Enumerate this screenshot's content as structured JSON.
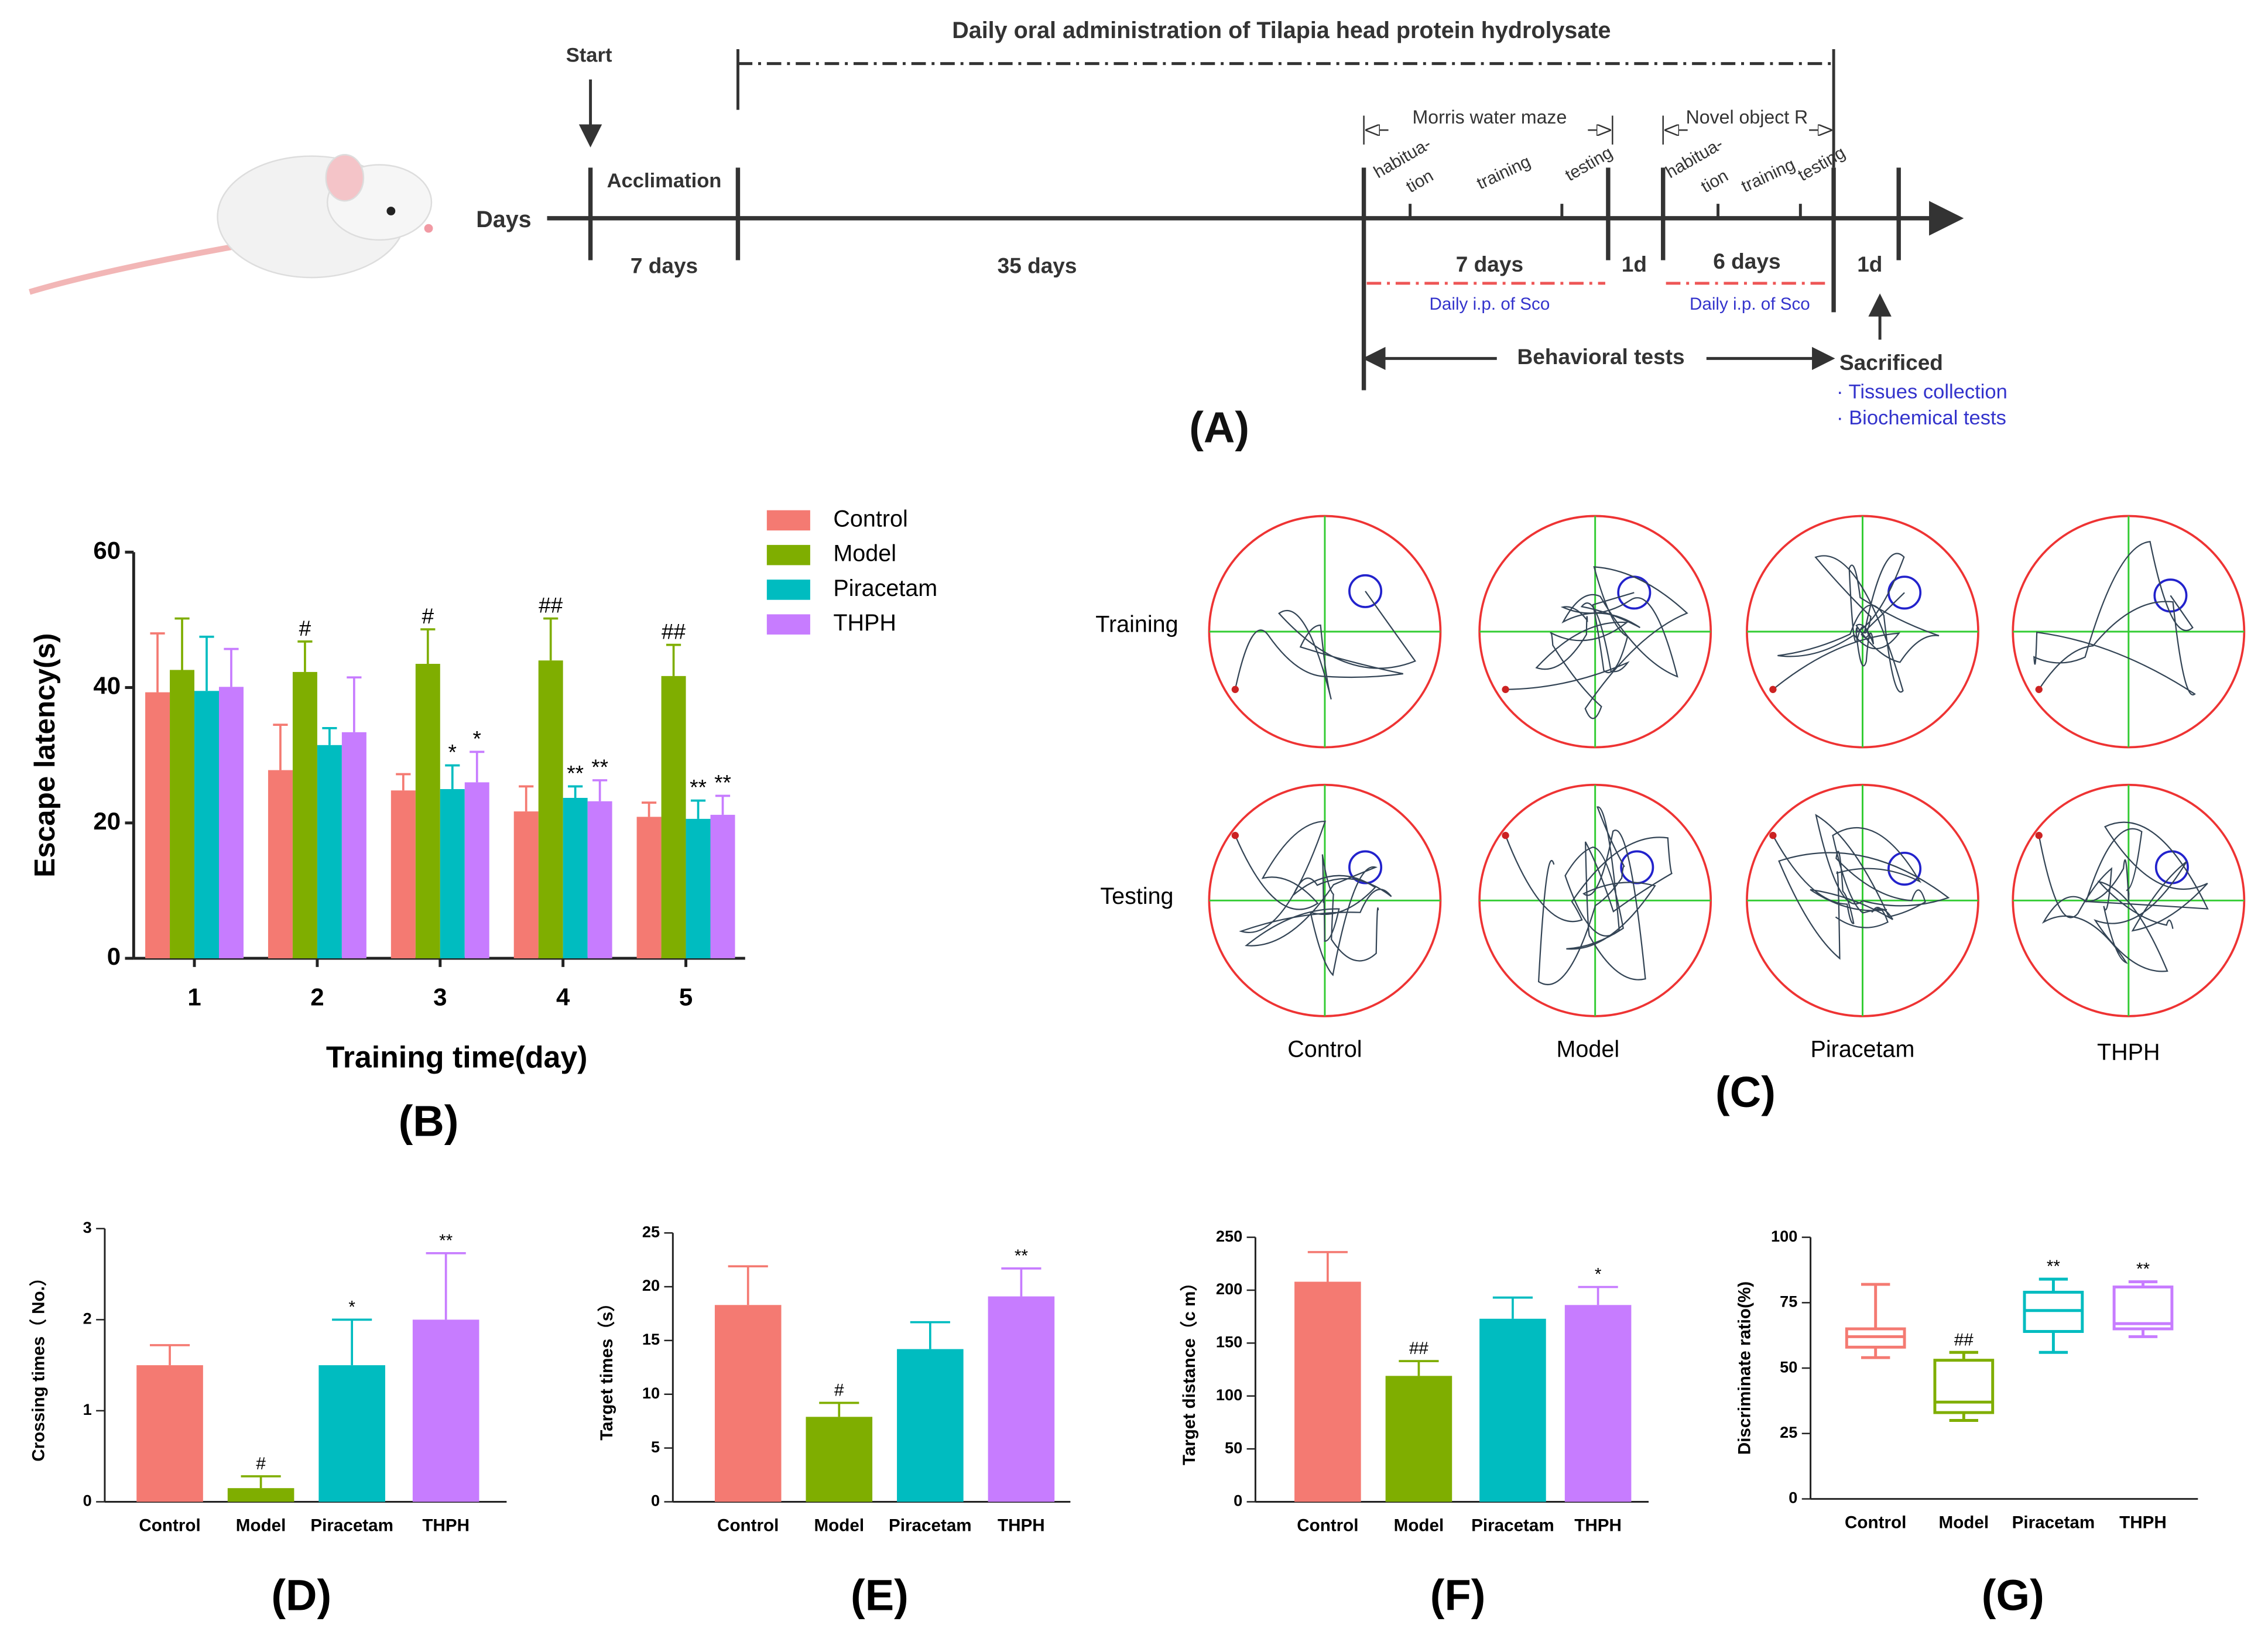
{
  "timeline": {
    "panel": "(A)",
    "labels": [
      "Start",
      "Daily oral administration of Tilapia head protein hydrolysate",
      "Acclimation",
      "Days",
      "7 days",
      "35 days",
      "Morris water maze",
      "habitua-",
      "tion",
      "training",
      "testing",
      "Novel object R",
      "habitua-",
      "tion",
      "training",
      "testing",
      "7 days",
      "1d",
      "6 days",
      "1d",
      "Daily i.p. of Sco",
      "Daily i.p. of Sco",
      "Behavioral tests",
      "Sacrificed",
      "· Tissues collection",
      "· Biochemical tests"
    ]
  },
  "maze": {
    "panel": "(C)",
    "rows": [
      "Training",
      "Testing"
    ],
    "columns": [
      "Control",
      "Model",
      "Piracetam",
      "THPH"
    ]
  },
  "chart_data": [
    {
      "type": "bar",
      "panel": "(B)",
      "ylabel": "Escape latency(s)",
      "xlabel": "Training time(day)",
      "categories": [
        "1",
        "2",
        "3",
        "4",
        "5"
      ],
      "ylim": [
        0,
        60
      ],
      "yticks": [
        0,
        20,
        40,
        60
      ],
      "series": [
        {
          "name": "Control",
          "color": "#f47a72",
          "values": [
            39.3,
            27.8,
            24.8,
            21.7,
            20.9
          ],
          "errors": [
            8.7,
            6.7,
            2.4,
            3.7,
            2.1
          ],
          "marks": [
            null,
            null,
            null,
            null,
            null
          ]
        },
        {
          "name": "Model",
          "color": "#7fae00",
          "values": [
            42.6,
            42.3,
            43.5,
            44.0,
            41.7
          ],
          "errors": [
            7.6,
            4.5,
            5.1,
            6.2,
            4.6
          ],
          "marks": [
            null,
            "#",
            "#",
            "##",
            "##"
          ]
        },
        {
          "name": "Piracetam",
          "color": "#00bcc0",
          "values": [
            39.5,
            31.5,
            25.0,
            23.7,
            20.6
          ],
          "errors": [
            8.0,
            2.5,
            3.5,
            1.7,
            2.7
          ],
          "marks": [
            null,
            null,
            "*",
            "**",
            "**"
          ]
        },
        {
          "name": "THPH",
          "color": "#c77cff",
          "values": [
            40.1,
            33.4,
            26.0,
            23.2,
            21.2
          ],
          "errors": [
            5.6,
            8.1,
            4.5,
            3.1,
            2.8
          ],
          "marks": [
            null,
            null,
            "*",
            "**",
            "**"
          ]
        }
      ]
    },
    {
      "type": "bar",
      "panel": "(D)",
      "ylabel": "Crossing times（ No.）",
      "categories": [
        "Control",
        "Model",
        "Piracetam",
        "THPH"
      ],
      "colors": [
        "#f47a72",
        "#7fae00",
        "#00bcc0",
        "#c77cff"
      ],
      "ylim": [
        0,
        3
      ],
      "yticks": [
        0,
        1,
        2,
        3
      ],
      "values": [
        1.5,
        0.15,
        1.5,
        2.0
      ],
      "errors": [
        0.22,
        0.13,
        0.5,
        0.73
      ],
      "marks": [
        null,
        "#",
        "*",
        "**"
      ]
    },
    {
      "type": "bar",
      "panel": "(E)",
      "ylabel": "Target times（s）",
      "categories": [
        "Control",
        "Model",
        "Piracetam",
        "THPH"
      ],
      "colors": [
        "#f47a72",
        "#7fae00",
        "#00bcc0",
        "#c77cff"
      ],
      "ylim": [
        0,
        25
      ],
      "yticks": [
        0,
        5,
        10,
        15,
        20,
        25
      ],
      "values": [
        18.3,
        7.9,
        14.2,
        19.1
      ],
      "errors": [
        3.6,
        1.3,
        2.5,
        2.6
      ],
      "marks": [
        null,
        "#",
        null,
        "**"
      ]
    },
    {
      "type": "bar",
      "panel": "(F)",
      "ylabel": "Target distance（c m）",
      "categories": [
        "Control",
        "Model",
        "Piracetam",
        "THPH"
      ],
      "colors": [
        "#f47a72",
        "#7fae00",
        "#00bcc0",
        "#c77cff"
      ],
      "ylim": [
        0,
        250
      ],
      "yticks": [
        0,
        50,
        100,
        150,
        200,
        250
      ],
      "values": [
        208,
        119,
        173,
        186
      ],
      "errors": [
        28,
        14,
        20,
        17
      ],
      "marks": [
        null,
        "##",
        null,
        "*"
      ]
    },
    {
      "type": "box",
      "panel": "(G)",
      "ylabel": "Discriminate ratio(%)",
      "categories": [
        "Control",
        "Model",
        "Piracetam",
        "THPH"
      ],
      "colors": [
        "#f47a72",
        "#7fae00",
        "#00bcc0",
        "#c77cff"
      ],
      "ylim": [
        0,
        100
      ],
      "yticks": [
        0,
        25,
        50,
        75,
        100
      ],
      "boxes": [
        {
          "min": 54,
          "q1": 58,
          "median": 62,
          "q3": 65,
          "max": 82
        },
        {
          "min": 30,
          "q1": 33,
          "median": 37,
          "q3": 53,
          "max": 56
        },
        {
          "min": 56,
          "q1": 64,
          "median": 72,
          "q3": 79,
          "max": 84
        },
        {
          "min": 62,
          "q1": 65,
          "median": 67,
          "q3": 81,
          "max": 83
        }
      ],
      "marks": [
        null,
        "##",
        "**",
        "**"
      ]
    }
  ]
}
